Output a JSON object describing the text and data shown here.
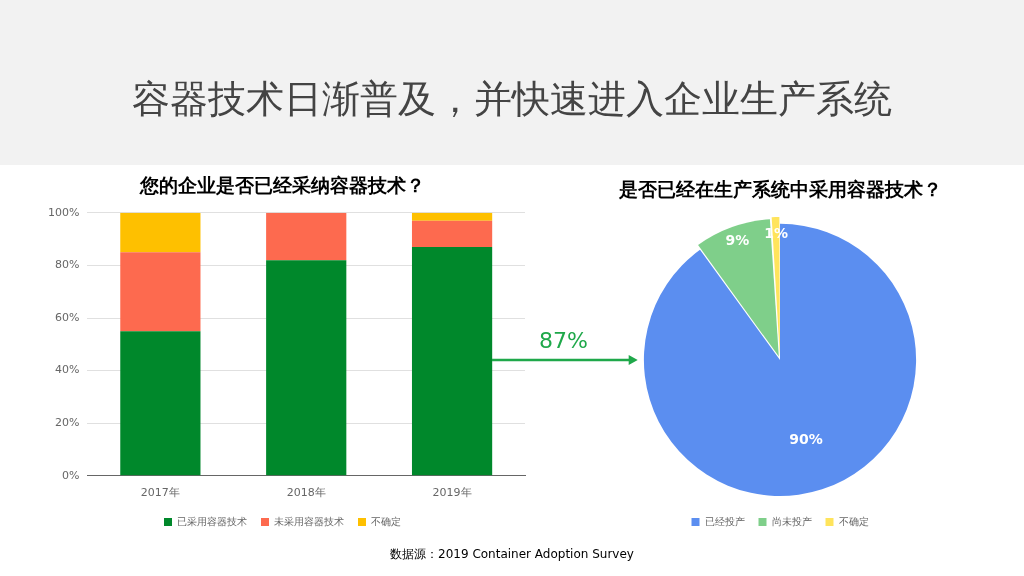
{
  "chart_data": [
    {
      "type": "other",
      "title": "容器技术日渐普及，并快速进入企业生产系统",
      "annotations": [
        "数据源：2019 Container Adoption Survey"
      ]
    },
    {
      "type": "bar",
      "title": "您的企业是否已经采纳容器技术？",
      "categories": [
        "2017年",
        "2018年",
        "2019年"
      ],
      "stacked": true,
      "series": [
        {
          "name": "已采用容器技术",
          "color": "#00882b",
          "values": [
            55,
            82,
            87
          ]
        },
        {
          "name": "未采用容器技术",
          "color": "#fd6a4f",
          "values": [
            30,
            18,
            10
          ]
        },
        {
          "name": "不确定",
          "color": "#fec000",
          "values": [
            15,
            null,
            3
          ]
        }
      ],
      "ylim": [
        0,
        100
      ],
      "yticks": [
        {
          "value": 0,
          "label": "0%"
        },
        {
          "value": 20,
          "label": "20%"
        },
        {
          "value": 40,
          "label": "40%"
        },
        {
          "value": 60,
          "label": "60%"
        },
        {
          "value": 80,
          "label": "80%"
        },
        {
          "value": 100,
          "label": "100%"
        }
      ],
      "grid": "y",
      "legend": "bottom",
      "annotations": [
        "87%"
      ]
    },
    {
      "type": "pie",
      "title": "是否已经在生产系统中采用容器技术？",
      "categories": [
        "已经投产",
        "尚未投产",
        "不确定"
      ],
      "values": [
        90,
        9,
        1
      ],
      "colors": [
        "#5b8ef0",
        "#7fcf8a",
        "#ffe45c"
      ],
      "value_labels": [
        "90%",
        "9%",
        "1%"
      ],
      "legend": "bottom"
    }
  ]
}
